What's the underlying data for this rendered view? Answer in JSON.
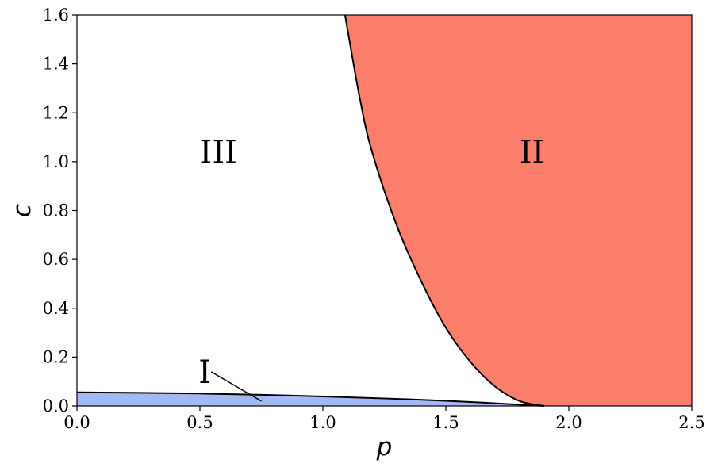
{
  "chart_data": {
    "type": "area",
    "title": "",
    "xlabel": "p",
    "ylabel": "c",
    "xlim": [
      0.0,
      2.5
    ],
    "ylim": [
      0.0,
      1.6
    ],
    "grid": false,
    "xticks": [
      "0.0",
      "0.5",
      "1.0",
      "1.5",
      "2.0",
      "2.5"
    ],
    "yticks": [
      "0.0",
      "0.2",
      "0.4",
      "0.6",
      "0.8",
      "1.0",
      "1.2",
      "1.4",
      "1.6"
    ],
    "regions": [
      {
        "name": "I",
        "color": "#a4b9f3",
        "boundary": {
          "x": [
            0.0,
            0.25,
            0.5,
            0.75,
            1.0,
            1.25,
            1.5,
            1.7,
            1.9
          ],
          "y": [
            0.056,
            0.054,
            0.051,
            0.046,
            0.039,
            0.031,
            0.021,
            0.011,
            0.0
          ]
        }
      },
      {
        "name": "II",
        "color": "#fa7e6a",
        "boundary": {
          "x": [
            1.09,
            1.15,
            1.2,
            1.3,
            1.4,
            1.5,
            1.6,
            1.7,
            1.8,
            1.9
          ],
          "y": [
            1.6,
            1.26,
            1.04,
            0.74,
            0.51,
            0.32,
            0.18,
            0.08,
            0.02,
            0.0
          ]
        }
      },
      {
        "name": "III",
        "color": "#ffffff"
      }
    ],
    "annotations": [
      {
        "text": "III",
        "x": 0.575,
        "y": 1.04
      },
      {
        "text": "II",
        "x": 1.85,
        "y": 1.04
      },
      {
        "text": "I",
        "x": 0.52,
        "y": 0.14,
        "arrow_to": [
          0.75,
          0.02
        ]
      }
    ]
  }
}
